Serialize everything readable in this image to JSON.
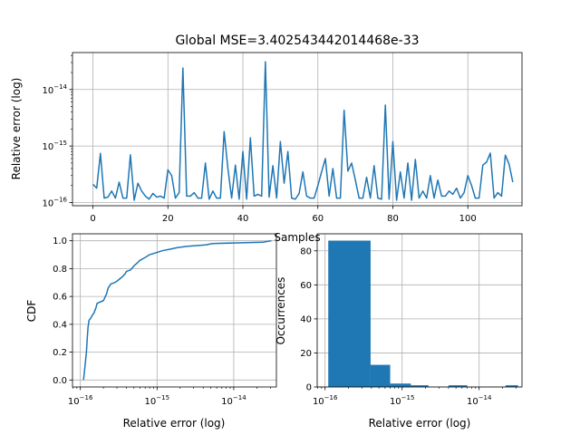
{
  "chart_data": [
    {
      "type": "line",
      "title": "Global MSE=3.402543442014468e-33",
      "xlabel": "Samples",
      "ylabel": "Relative error (log)",
      "yscale": "log",
      "xlim": [
        -5.45,
        114.45
      ],
      "ylim": [
        8.8e-17,
        4.5e-14
      ],
      "x_ticks": [
        0,
        20,
        40,
        60,
        80,
        100
      ],
      "y_ticks": [
        {
          "value": 1e-16,
          "mant": "10",
          "exp": "−16"
        },
        {
          "value": 1e-15,
          "mant": "10",
          "exp": "−15"
        },
        {
          "value": 1e-14,
          "mant": "10",
          "exp": "−14"
        }
      ],
      "grid": true,
      "colors": {
        "line": "#1f77b4"
      },
      "series": [
        {
          "values": [
            2.1e-16,
            1.8e-16,
            7.4e-16,
            1.2e-16,
            1.25e-16,
            1.6e-16,
            1.2e-16,
            2.3e-16,
            1.2e-16,
            1.2e-16,
            7e-16,
            1.1e-16,
            2.2e-16,
            1.6e-16,
            1.3e-16,
            1.15e-16,
            1.45e-16,
            1.25e-16,
            1.3e-16,
            1.2e-16,
            3.8e-16,
            3e-16,
            1.2e-16,
            1.5e-16,
            2.4e-14,
            1.3e-16,
            1.3e-16,
            1.5e-16,
            1.2e-16,
            1.2e-16,
            5e-16,
            1.15e-16,
            1.6e-16,
            1.2e-16,
            1.2e-16,
            1.8e-15,
            4e-16,
            1.2e-16,
            4.6e-16,
            1.15e-16,
            8e-16,
            1.15e-16,
            1.4e-15,
            1.3e-16,
            1.4e-16,
            1.3e-16,
            3.1e-14,
            1.25e-16,
            4.5e-16,
            1.2e-16,
            1.2e-15,
            2.2e-16,
            8e-16,
            1.2e-16,
            1.15e-16,
            1.45e-16,
            3.5e-16,
            1.3e-16,
            1.2e-16,
            1.2e-16,
            2e-16,
            3.5e-16,
            6e-16,
            1.3e-16,
            4e-16,
            1.2e-16,
            1.2e-16,
            4.3e-15,
            3.6e-16,
            5e-16,
            2.5e-16,
            1.2e-16,
            1.2e-16,
            2.8e-16,
            1.2e-16,
            4.5e-16,
            1.2e-16,
            1.15e-16,
            5.3e-15,
            1.15e-16,
            1.2e-15,
            1.1e-16,
            3.5e-16,
            1.2e-16,
            5e-16,
            1.1e-16,
            5.8e-16,
            1.2e-16,
            1.6e-16,
            1.2e-16,
            3e-16,
            1.2e-16,
            2.5e-16,
            1.3e-16,
            1.3e-16,
            1.6e-16,
            1.4e-16,
            1.8e-16,
            1.2e-16,
            1.5e-16,
            3e-16,
            2e-16,
            1.2e-16,
            1.2e-16,
            4.6e-16,
            5.2e-16,
            7.5e-16,
            1.2e-16,
            1.5e-16,
            1.3e-16,
            6.9e-16,
            4.8e-16,
            2.3e-16
          ]
        }
      ]
    },
    {
      "type": "line",
      "title": "",
      "xlabel": "Relative error (log)",
      "ylabel": "CDF",
      "xscale": "log",
      "xlim": [
        7.9e-17,
        3.6e-14
      ],
      "ylim": [
        -0.05,
        1.05
      ],
      "x_ticks": [
        {
          "value": 1e-16,
          "mant": "10",
          "exp": "−16"
        },
        {
          "value": 1e-15,
          "mant": "10",
          "exp": "−15"
        },
        {
          "value": 1e-14,
          "mant": "10",
          "exp": "−14"
        }
      ],
      "y_ticks": [
        "0.0",
        "0.2",
        "0.4",
        "0.6",
        "0.8",
        "1.0"
      ],
      "grid": true,
      "colors": {
        "line": "#1f77b4"
      },
      "series": [
        {
          "x": [
            1.1e-16,
            1.15e-16,
            1.2e-16,
            1.23e-16,
            1.26e-16,
            1.3e-16,
            1.35e-16,
            1.45e-16,
            1.5e-16,
            1.6e-16,
            1.65e-16,
            1.8e-16,
            2e-16,
            2.2e-16,
            2.3e-16,
            2.5e-16,
            2.8e-16,
            3e-16,
            3.5e-16,
            3.8e-16,
            4e-16,
            4.5e-16,
            5e-16,
            5.5e-16,
            6e-16,
            7e-16,
            8e-16,
            1.2e-15,
            1.5e-15,
            1.8e-15,
            2.4e-15,
            4.3e-15,
            5.3e-15,
            2.4e-14,
            3.1e-14
          ],
          "y": [
            0.0,
            0.1,
            0.2,
            0.3,
            0.38,
            0.43,
            0.44,
            0.47,
            0.48,
            0.52,
            0.55,
            0.56,
            0.57,
            0.62,
            0.66,
            0.69,
            0.7,
            0.71,
            0.74,
            0.76,
            0.78,
            0.79,
            0.82,
            0.84,
            0.86,
            0.88,
            0.9,
            0.93,
            0.94,
            0.95,
            0.96,
            0.97,
            0.98,
            0.99,
            1.0
          ]
        }
      ]
    },
    {
      "type": "bar",
      "title": "",
      "xlabel": "Relative error (log)",
      "ylabel": "Occurrences",
      "xscale": "log",
      "xlim": [
        7.9e-17,
        3.6e-14
      ],
      "ylim": [
        0,
        90
      ],
      "x_ticks": [
        {
          "value": 1e-16,
          "mant": "10",
          "exp": "−16"
        },
        {
          "value": 1e-15,
          "mant": "10",
          "exp": "−15"
        },
        {
          "value": 1e-14,
          "mant": "10",
          "exp": "−14"
        }
      ],
      "y_ticks": [
        0,
        20,
        40,
        60,
        80
      ],
      "grid": true,
      "colors": {
        "bar": "#1f77b4"
      },
      "bins": [
        {
          "x0": 1.1e-16,
          "x1": 3.9e-16,
          "count": 86
        },
        {
          "x0": 3.9e-16,
          "x1": 7e-16,
          "count": 13
        },
        {
          "x0": 7e-16,
          "x1": 1.3e-15,
          "count": 2
        },
        {
          "x0": 1.3e-15,
          "x1": 2.2e-15,
          "count": 1
        },
        {
          "x0": 2.2e-15,
          "x1": 4e-15,
          "count": 0
        },
        {
          "x0": 4e-15,
          "x1": 7e-15,
          "count": 1
        },
        {
          "x0": 7e-15,
          "x1": 1.3e-14,
          "count": 0
        },
        {
          "x0": 1.3e-14,
          "x1": 2.2e-14,
          "count": 0
        },
        {
          "x0": 2.2e-14,
          "x1": 3.2e-14,
          "count": 1
        }
      ]
    }
  ]
}
